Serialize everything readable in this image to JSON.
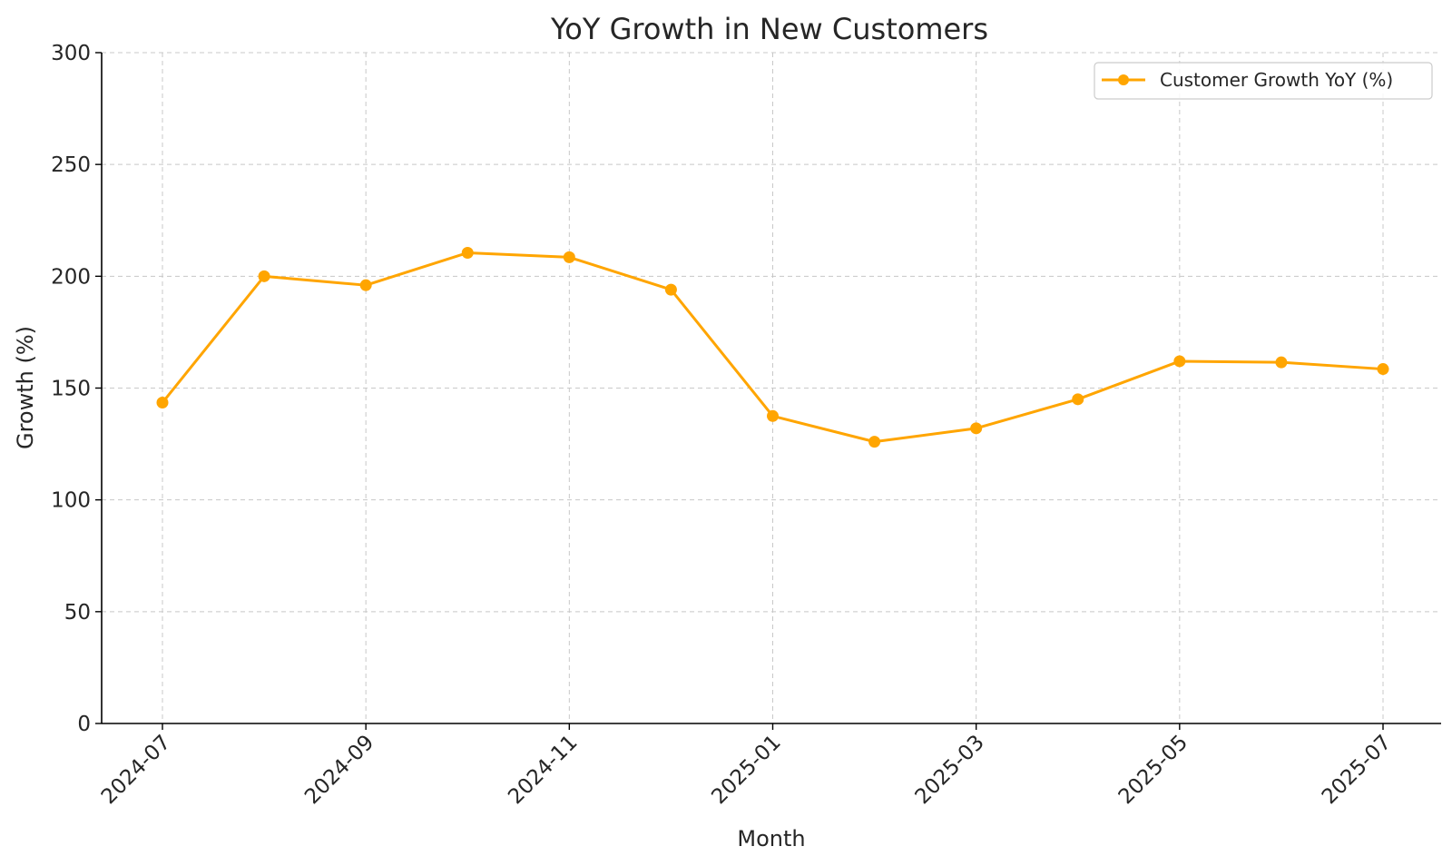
{
  "chart_data": {
    "type": "line",
    "title": "YoY Growth in New Customers",
    "xlabel": "Month",
    "ylabel": "Growth (%)",
    "ylim": [
      0,
      300
    ],
    "yticks": [
      0,
      50,
      100,
      150,
      200,
      250,
      300
    ],
    "xticks": [
      "2024-07",
      "2024-09",
      "2024-11",
      "2025-01",
      "2025-03",
      "2025-05",
      "2025-07"
    ],
    "x": [
      "2024-07",
      "2024-08",
      "2024-09",
      "2024-10",
      "2024-11",
      "2024-12",
      "2025-01",
      "2025-02",
      "2025-03",
      "2025-04",
      "2025-05",
      "2025-06",
      "2025-07"
    ],
    "series": [
      {
        "name": "Customer Growth YoY (%)",
        "color": "#ffa500",
        "values": [
          143.5,
          200,
          196,
          210.5,
          208.5,
          194,
          137.5,
          126,
          132,
          145,
          162,
          161.5,
          158.5
        ]
      }
    ],
    "grid": true,
    "legend_position": "top-right"
  }
}
